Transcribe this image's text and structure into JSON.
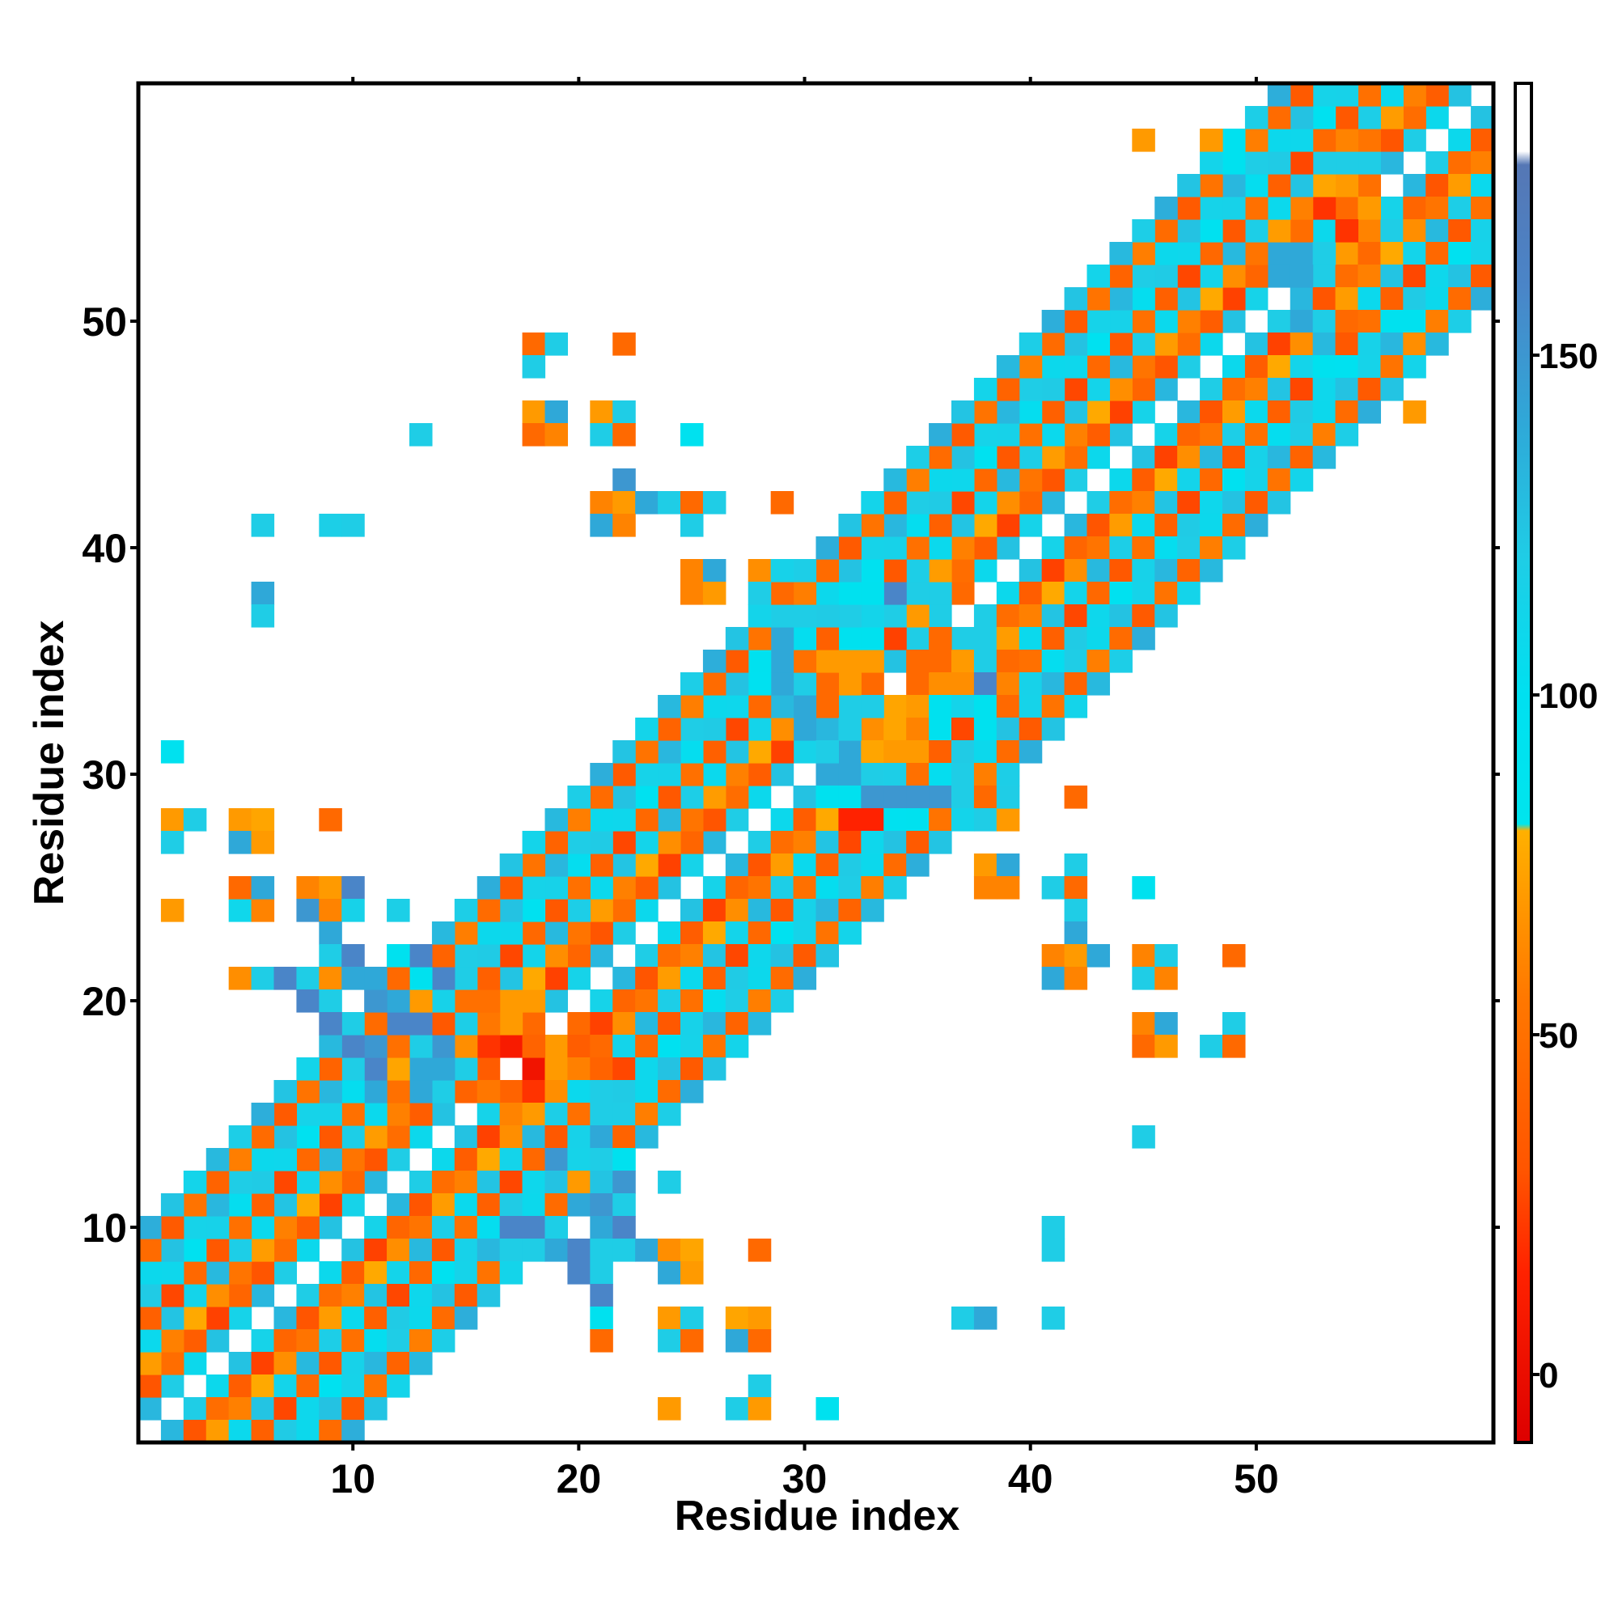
{
  "chart_data": {
    "type": "heatmap",
    "title": "",
    "xlabel": "Residue index",
    "ylabel": "Residue index",
    "xlim": [
      1,
      60
    ],
    "ylim": [
      1,
      60
    ],
    "xticks": [
      10,
      20,
      30,
      40,
      50
    ],
    "yticks": [
      10,
      20,
      30,
      40,
      50
    ],
    "grid": false,
    "colorbar": {
      "ticks": [
        0,
        50,
        100,
        150
      ],
      "range": [
        -10,
        190
      ],
      "stops": [
        {
          "value": -10,
          "color": "#dd0000"
        },
        {
          "value": 15,
          "color": "#ff2200"
        },
        {
          "value": 30,
          "color": "#ff5500"
        },
        {
          "value": 55,
          "color": "#ff7700"
        },
        {
          "value": 75,
          "color": "#ffa500"
        },
        {
          "value": 80,
          "color": "#ffb000"
        },
        {
          "value": 81,
          "color": "#00e5ee"
        },
        {
          "value": 100,
          "color": "#00e0f0"
        },
        {
          "value": 120,
          "color": "#1fcde6"
        },
        {
          "value": 140,
          "color": "#2fa8d8"
        },
        {
          "value": 160,
          "color": "#4a85c8"
        },
        {
          "value": 178,
          "color": "#5577b5"
        },
        {
          "value": 180,
          "color": "#ffffff"
        },
        {
          "value": 190,
          "color": "#ffffff"
        }
      ]
    },
    "diagonal_offsets": [
      {
        "offset": 1,
        "value": 118
      },
      {
        "offset": 2,
        "value": 35
      },
      {
        "offset": 3,
        "value": 65
      },
      {
        "offset": 4,
        "value": 120
      },
      {
        "offset": 5,
        "value": 40
      },
      {
        "offset": 6,
        "value": 112
      },
      {
        "offset": 7,
        "value": 118
      },
      {
        "offset": 8,
        "value": 45
      },
      {
        "offset": 9,
        "value": 125
      }
    ],
    "off_diagonal_points": [
      [
        6,
        41,
        120
      ],
      [
        9,
        41,
        118
      ],
      [
        10,
        41,
        120
      ],
      [
        6,
        38,
        140
      ],
      [
        6,
        37,
        120
      ],
      [
        2,
        31,
        95
      ],
      [
        2,
        28,
        70
      ],
      [
        3,
        28,
        120
      ],
      [
        5,
        28,
        70
      ],
      [
        6,
        28,
        75
      ],
      [
        9,
        28,
        45
      ],
      [
        2,
        27,
        120
      ],
      [
        5,
        27,
        140
      ],
      [
        6,
        27,
        70
      ],
      [
        2,
        24,
        70
      ],
      [
        5,
        24,
        110
      ],
      [
        6,
        24,
        60
      ],
      [
        5,
        25,
        45
      ],
      [
        6,
        25,
        140
      ],
      [
        8,
        25,
        60
      ],
      [
        9,
        25,
        70
      ],
      [
        10,
        25,
        160
      ],
      [
        8,
        24,
        150
      ],
      [
        9,
        24,
        60
      ],
      [
        10,
        24,
        115
      ],
      [
        12,
        24,
        118
      ],
      [
        9,
        23,
        140
      ],
      [
        9,
        22,
        120
      ],
      [
        10,
        22,
        160
      ],
      [
        12,
        22,
        95
      ],
      [
        13,
        22,
        160
      ],
      [
        5,
        21,
        65
      ],
      [
        6,
        21,
        120
      ],
      [
        7,
        21,
        160
      ],
      [
        8,
        21,
        120
      ],
      [
        9,
        21,
        65
      ],
      [
        10,
        21,
        140
      ],
      [
        11,
        21,
        140
      ],
      [
        12,
        21,
        45
      ],
      [
        13,
        21,
        95
      ],
      [
        14,
        21,
        160
      ],
      [
        15,
        21,
        120
      ],
      [
        8,
        20,
        160
      ],
      [
        9,
        20,
        120
      ],
      [
        11,
        20,
        150
      ],
      [
        12,
        20,
        140
      ],
      [
        13,
        20,
        70
      ],
      [
        9,
        19,
        160
      ],
      [
        10,
        19,
        120
      ],
      [
        12,
        19,
        160
      ],
      [
        13,
        19,
        160
      ],
      [
        10,
        18,
        160
      ],
      [
        11,
        18,
        150
      ],
      [
        12,
        18,
        50
      ],
      [
        13,
        18,
        120
      ],
      [
        14,
        18,
        150
      ],
      [
        15,
        18,
        65
      ],
      [
        10,
        17,
        120
      ],
      [
        11,
        17,
        160
      ],
      [
        12,
        17,
        75
      ],
      [
        13,
        17,
        140
      ],
      [
        14,
        17,
        140
      ],
      [
        15,
        17,
        120
      ],
      [
        11,
        16,
        140
      ],
      [
        12,
        16,
        50
      ],
      [
        13,
        16,
        140
      ],
      [
        14,
        16,
        120
      ],
      [
        15,
        16,
        40
      ],
      [
        18,
        49,
        45
      ],
      [
        19,
        49,
        120
      ],
      [
        22,
        49,
        45
      ],
      [
        18,
        48,
        120
      ],
      [
        18,
        46,
        70
      ],
      [
        19,
        46,
        140
      ],
      [
        21,
        46,
        70
      ],
      [
        22,
        46,
        120
      ],
      [
        13,
        45,
        120
      ],
      [
        18,
        45,
        45
      ],
      [
        19,
        45,
        60
      ],
      [
        21,
        45,
        120
      ],
      [
        22,
        45,
        45
      ],
      [
        25,
        45,
        95
      ],
      [
        22,
        43,
        150
      ],
      [
        21,
        42,
        60
      ],
      [
        22,
        42,
        70
      ],
      [
        23,
        42,
        140
      ],
      [
        24,
        42,
        120
      ],
      [
        25,
        42,
        45
      ],
      [
        26,
        42,
        120
      ],
      [
        29,
        42,
        45
      ],
      [
        21,
        41,
        140
      ],
      [
        22,
        41,
        60
      ],
      [
        25,
        41,
        120
      ],
      [
        25,
        39,
        60
      ],
      [
        26,
        39,
        140
      ],
      [
        28,
        39,
        65
      ],
      [
        29,
        39,
        115
      ],
      [
        25,
        38,
        60
      ],
      [
        26,
        38,
        70
      ],
      [
        28,
        38,
        120
      ],
      [
        29,
        38,
        45
      ],
      [
        29,
        37,
        120
      ],
      [
        29,
        36,
        140
      ],
      [
        28,
        35,
        95
      ],
      [
        29,
        35,
        140
      ],
      [
        16,
        20,
        50
      ],
      [
        17,
        20,
        70
      ],
      [
        18,
        20,
        70
      ],
      [
        16,
        19,
        55
      ],
      [
        17,
        19,
        70
      ],
      [
        18,
        19,
        45
      ],
      [
        20,
        19,
        45
      ],
      [
        16,
        18,
        20
      ],
      [
        17,
        18,
        10
      ],
      [
        18,
        18,
        40
      ],
      [
        19,
        18,
        70
      ],
      [
        21,
        18,
        45
      ],
      [
        16,
        17,
        35
      ],
      [
        18,
        17,
        5
      ],
      [
        19,
        17,
        70
      ],
      [
        21,
        17,
        40
      ],
      [
        16,
        16,
        55
      ],
      [
        17,
        16,
        40
      ],
      [
        18,
        16,
        20
      ],
      [
        19,
        16,
        65
      ],
      [
        21,
        16,
        120
      ],
      [
        17,
        15,
        60
      ],
      [
        18,
        15,
        70
      ],
      [
        21,
        15,
        120
      ],
      [
        21,
        14,
        140
      ],
      [
        19,
        13,
        150
      ],
      [
        21,
        13,
        120
      ],
      [
        22,
        13,
        95
      ],
      [
        22,
        12,
        150
      ],
      [
        20,
        12,
        70
      ],
      [
        24,
        12,
        120
      ],
      [
        20,
        11,
        140
      ],
      [
        21,
        11,
        150
      ],
      [
        22,
        11,
        120
      ],
      [
        17,
        10,
        160
      ],
      [
        18,
        10,
        160
      ],
      [
        21,
        10,
        140
      ],
      [
        22,
        10,
        160
      ],
      [
        17,
        9,
        120
      ],
      [
        18,
        9,
        120
      ],
      [
        19,
        9,
        140
      ],
      [
        20,
        9,
        160
      ],
      [
        21,
        9,
        120
      ],
      [
        22,
        9,
        120
      ],
      [
        23,
        9,
        140
      ],
      [
        24,
        9,
        65
      ],
      [
        25,
        9,
        75
      ],
      [
        28,
        9,
        45
      ],
      [
        20,
        8,
        160
      ],
      [
        21,
        8,
        120
      ],
      [
        24,
        8,
        140
      ],
      [
        25,
        8,
        70
      ],
      [
        21,
        7,
        160
      ],
      [
        21,
        6,
        95
      ],
      [
        24,
        6,
        70
      ],
      [
        25,
        6,
        120
      ],
      [
        27,
        6,
        75
      ],
      [
        28,
        6,
        70
      ],
      [
        24,
        5,
        120
      ],
      [
        25,
        5,
        45
      ],
      [
        27,
        5,
        140
      ],
      [
        28,
        5,
        45
      ],
      [
        21,
        5,
        45
      ],
      [
        28,
        3,
        120
      ],
      [
        24,
        2,
        70
      ],
      [
        27,
        2,
        120
      ],
      [
        28,
        2,
        70
      ],
      [
        31,
        2,
        95
      ],
      [
        37,
        6,
        120
      ],
      [
        38,
        6,
        140
      ],
      [
        41,
        6,
        120
      ],
      [
        41,
        10,
        120
      ],
      [
        41,
        9,
        120
      ],
      [
        32,
        28,
        15
      ],
      [
        33,
        28,
        15
      ],
      [
        35,
        28,
        95
      ],
      [
        38,
        28,
        120
      ],
      [
        39,
        28,
        70
      ],
      [
        31,
        29,
        95
      ],
      [
        32,
        29,
        95
      ],
      [
        33,
        29,
        150
      ],
      [
        34,
        29,
        150
      ],
      [
        35,
        29,
        150
      ],
      [
        36,
        29,
        150
      ],
      [
        37,
        29,
        120
      ],
      [
        38,
        29,
        45
      ],
      [
        39,
        29,
        120
      ],
      [
        42,
        29,
        45
      ],
      [
        31,
        30,
        140
      ],
      [
        32,
        30,
        140
      ],
      [
        33,
        30,
        120
      ],
      [
        31,
        31,
        120
      ],
      [
        32,
        31,
        140
      ],
      [
        33,
        31,
        75
      ],
      [
        34,
        31,
        70
      ],
      [
        35,
        31,
        70
      ],
      [
        30,
        32,
        140
      ],
      [
        32,
        32,
        120
      ],
      [
        33,
        32,
        65
      ],
      [
        34,
        32,
        75
      ],
      [
        35,
        32,
        60
      ],
      [
        36,
        32,
        95
      ],
      [
        38,
        32,
        95
      ],
      [
        30,
        33,
        140
      ],
      [
        31,
        33,
        45
      ],
      [
        33,
        33,
        120
      ],
      [
        34,
        33,
        75
      ],
      [
        35,
        33,
        70
      ],
      [
        36,
        33,
        95
      ],
      [
        38,
        33,
        95
      ],
      [
        39,
        33,
        45
      ],
      [
        29,
        34,
        140
      ],
      [
        30,
        34,
        120
      ],
      [
        31,
        34,
        45
      ],
      [
        32,
        34,
        70
      ],
      [
        33,
        34,
        45
      ],
      [
        35,
        34,
        45
      ],
      [
        36,
        34,
        65
      ],
      [
        38,
        34,
        160
      ],
      [
        39,
        34,
        60
      ],
      [
        31,
        35,
        70
      ],
      [
        32,
        35,
        70
      ],
      [
        33,
        35,
        70
      ],
      [
        35,
        35,
        45
      ],
      [
        36,
        35,
        45
      ],
      [
        37,
        35,
        70
      ],
      [
        38,
        35,
        120
      ],
      [
        39,
        35,
        45
      ],
      [
        32,
        36,
        95
      ],
      [
        33,
        36,
        95
      ],
      [
        35,
        36,
        120
      ],
      [
        36,
        36,
        45
      ],
      [
        37,
        36,
        120
      ],
      [
        38,
        36,
        120
      ],
      [
        32,
        37,
        120
      ],
      [
        34,
        37,
        120
      ],
      [
        35,
        37,
        70
      ],
      [
        36,
        37,
        120
      ],
      [
        32,
        38,
        95
      ],
      [
        33,
        38,
        95
      ],
      [
        34,
        38,
        160
      ],
      [
        35,
        38,
        120
      ],
      [
        36,
        38,
        120
      ],
      [
        37,
        38,
        45
      ],
      [
        38,
        26,
        70
      ],
      [
        39,
        26,
        140
      ],
      [
        42,
        26,
        120
      ],
      [
        38,
        25,
        60
      ],
      [
        39,
        25,
        60
      ],
      [
        41,
        25,
        120
      ],
      [
        42,
        25,
        45
      ],
      [
        45,
        25,
        95
      ],
      [
        42,
        24,
        120
      ],
      [
        42,
        23,
        140
      ],
      [
        41,
        22,
        60
      ],
      [
        42,
        22,
        70
      ],
      [
        43,
        22,
        140
      ],
      [
        45,
        22,
        60
      ],
      [
        46,
        22,
        120
      ],
      [
        49,
        22,
        45
      ],
      [
        41,
        21,
        140
      ],
      [
        42,
        21,
        60
      ],
      [
        45,
        21,
        120
      ],
      [
        46,
        21,
        60
      ],
      [
        45,
        19,
        60
      ],
      [
        46,
        19,
        140
      ],
      [
        49,
        19,
        120
      ],
      [
        45,
        18,
        45
      ],
      [
        46,
        18,
        70
      ],
      [
        48,
        18,
        120
      ],
      [
        49,
        18,
        45
      ],
      [
        45,
        14,
        120
      ],
      [
        45,
        58,
        70
      ],
      [
        48,
        58,
        70
      ],
      [
        49,
        58,
        95
      ],
      [
        49,
        57,
        95
      ],
      [
        51,
        50,
        120
      ],
      [
        52,
        50,
        140
      ],
      [
        53,
        50,
        120
      ],
      [
        54,
        50,
        45
      ],
      [
        56,
        50,
        95
      ],
      [
        57,
        50,
        95
      ],
      [
        57,
        49,
        65
      ],
      [
        53,
        48,
        95
      ],
      [
        57,
        46,
        70
      ],
      [
        51,
        53,
        140
      ],
      [
        52,
        53,
        140
      ],
      [
        53,
        53,
        120
      ],
      [
        51,
        52,
        140
      ],
      [
        52,
        52,
        140
      ],
      [
        53,
        52,
        120
      ],
      [
        53,
        58,
        45
      ],
      [
        54,
        58,
        60
      ],
      [
        53,
        57,
        120
      ],
      [
        54,
        57,
        120
      ],
      [
        55,
        57,
        120
      ],
      [
        53,
        56,
        75
      ],
      [
        54,
        56,
        70
      ],
      [
        55,
        56,
        50
      ],
      [
        53,
        55,
        20
      ],
      [
        54,
        55,
        45
      ],
      [
        55,
        55,
        70
      ],
      [
        54,
        54,
        20
      ],
      [
        55,
        54,
        60
      ],
      [
        56,
        54,
        120
      ],
      [
        54,
        53,
        70
      ],
      [
        55,
        53,
        45
      ]
    ]
  }
}
